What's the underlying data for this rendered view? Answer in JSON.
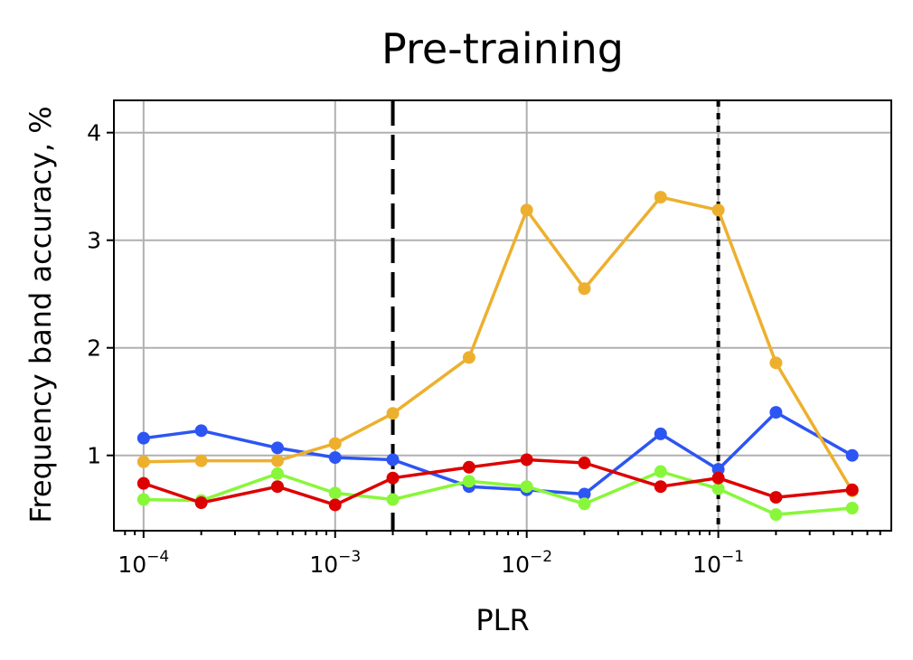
{
  "chart_data": {
    "type": "line",
    "title": "Pre-training",
    "xlabel": "PLR",
    "ylabel": "Frequency band accuracy, %",
    "xscale": "log",
    "xlim": [
      7e-05,
      0.8
    ],
    "ylim": [
      0.3,
      4.3
    ],
    "xticks": [
      {
        "value": 0.0001,
        "base": "10",
        "exp": "−4"
      },
      {
        "value": 0.001,
        "base": "10",
        "exp": "−3"
      },
      {
        "value": 0.01,
        "base": "10",
        "exp": "−2"
      },
      {
        "value": 0.1,
        "base": "10",
        "exp": "−1"
      }
    ],
    "yticks": [
      {
        "value": 1,
        "label": "1"
      },
      {
        "value": 2,
        "label": "2"
      },
      {
        "value": 3,
        "label": "3"
      },
      {
        "value": 4,
        "label": "4"
      }
    ],
    "grid": true,
    "x": [
      0.0001,
      0.0002,
      0.0005,
      0.001,
      0.002,
      0.005,
      0.01,
      0.02,
      0.05,
      0.1,
      0.2,
      0.5
    ],
    "vlines": [
      {
        "x": 0.002,
        "style": "dashed",
        "color": "#000000"
      },
      {
        "x": 0.1,
        "style": "dotted",
        "color": "#000000"
      }
    ],
    "series": [
      {
        "color": "#2c55f3",
        "values": [
          1.16,
          1.23,
          1.07,
          0.98,
          0.96,
          0.71,
          0.68,
          0.64,
          1.2,
          0.87,
          1.4,
          1.0
        ]
      },
      {
        "color": "#edb02e",
        "values": [
          0.94,
          0.95,
          0.95,
          1.11,
          1.39,
          1.91,
          3.28,
          2.55,
          3.4,
          3.28,
          1.86,
          0.67
        ]
      },
      {
        "color": "#88f73a",
        "values": [
          0.59,
          0.58,
          0.83,
          0.65,
          0.59,
          0.76,
          0.71,
          0.55,
          0.85,
          0.69,
          0.45,
          0.51
        ]
      },
      {
        "color": "#dd0000",
        "values": [
          0.74,
          0.56,
          0.71,
          0.54,
          0.79,
          0.89,
          0.96,
          0.93,
          0.71,
          0.79,
          0.61,
          0.68
        ]
      }
    ]
  }
}
